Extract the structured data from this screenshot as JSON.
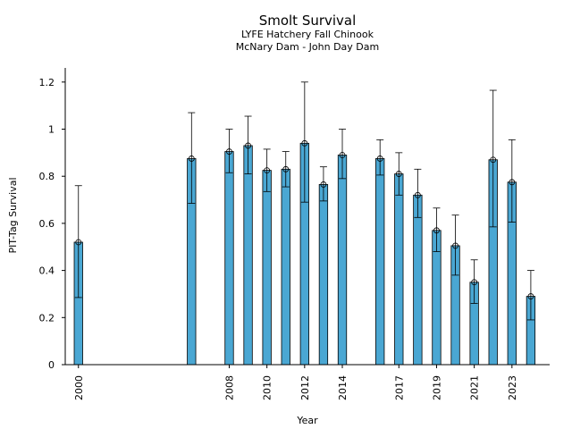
{
  "chart_data": {
    "type": "bar",
    "title": "Smolt Survival",
    "subtitles": [
      "LYFE Hatchery Fall Chinook",
      "McNary Dam - John Day Dam"
    ],
    "xlabel": "Year",
    "ylabel": "PIT-Tag Survival",
    "xlim": [
      1999.3,
      2025.0
    ],
    "ylim": [
      0,
      1.26
    ],
    "x_ticks": [
      2000,
      2008,
      2010,
      2012,
      2014,
      2017,
      2019,
      2021,
      2023
    ],
    "y_ticks": [
      0,
      0.2,
      0.4,
      0.6,
      0.8,
      1,
      1.2
    ],
    "grid": false,
    "bar_color": "#4aa7d3",
    "series": [
      {
        "x": [
          2000,
          2006,
          2008,
          2009,
          2010,
          2011,
          2012,
          2013,
          2014,
          2016,
          2017,
          2018,
          2019,
          2020,
          2021,
          2022,
          2023,
          2024
        ],
        "values": [
          0.52,
          0.875,
          0.905,
          0.93,
          0.825,
          0.83,
          0.94,
          0.765,
          0.89,
          0.875,
          0.81,
          0.72,
          0.57,
          0.505,
          0.35,
          0.87,
          0.775,
          0.29
        ],
        "lower": [
          0.285,
          0.685,
          0.815,
          0.81,
          0.735,
          0.755,
          0.69,
          0.695,
          0.79,
          0.805,
          0.72,
          0.625,
          0.48,
          0.38,
          0.26,
          0.585,
          0.605,
          0.19
        ],
        "upper": [
          0.76,
          1.07,
          1.0,
          1.055,
          0.915,
          0.905,
          1.2,
          0.84,
          1.0,
          0.955,
          0.9,
          0.83,
          0.665,
          0.635,
          0.445,
          1.165,
          0.955,
          0.4
        ]
      }
    ]
  }
}
